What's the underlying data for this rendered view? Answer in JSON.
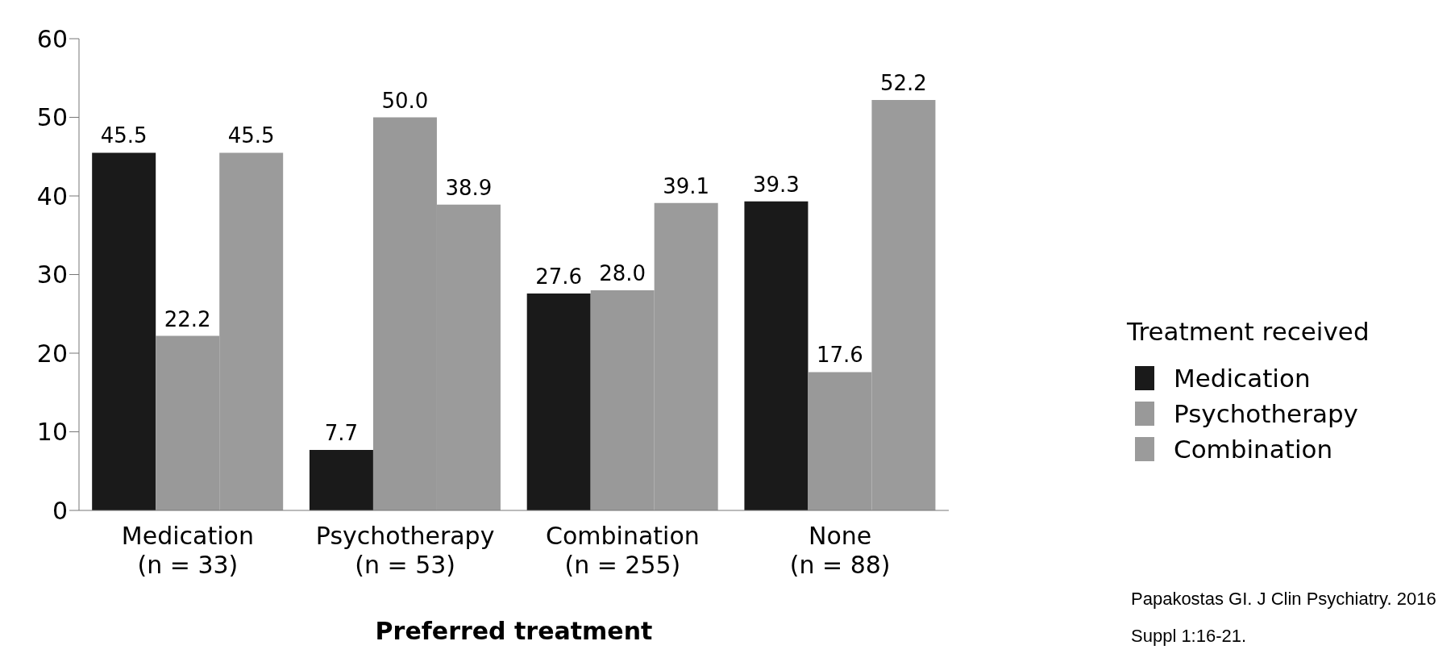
{
  "chart_data": {
    "type": "bar",
    "xlabel": "Preferred treatment",
    "legend_title": "Treatment received",
    "categories": [
      "Medication\n(n = 33)",
      "Psychotherapy\n(n = 53)",
      "Combination\n(n = 255)",
      "None\n(n = 88)"
    ],
    "series": [
      {
        "name": "Medication",
        "color": "#1a1a1a",
        "values": [
          45.5,
          7.7,
          27.6,
          39.3
        ],
        "value_labels": [
          "45.5",
          "7.7",
          "27.6",
          "39.3"
        ]
      },
      {
        "name": "Psychotherapy",
        "color": "#999999",
        "values": [
          22.2,
          50.0,
          28.0,
          17.6
        ],
        "value_labels": [
          "22.2",
          "50.0",
          "28.0",
          "17.6"
        ]
      },
      {
        "name": "Combination",
        "color": "#9b9b9b",
        "values": [
          45.5,
          38.9,
          39.1,
          52.2
        ],
        "value_labels": [
          "45.5",
          "38.9",
          "39.1",
          "52.2"
        ]
      }
    ],
    "ylim": [
      0,
      60
    ],
    "yticks": [
      0,
      10,
      20,
      30,
      40,
      50,
      60
    ],
    "grid": false,
    "legend": "right",
    "annotations": [
      "Papakostas GI. J Clin Psychiatry. 2016",
      "Suppl 1:16-21."
    ]
  }
}
